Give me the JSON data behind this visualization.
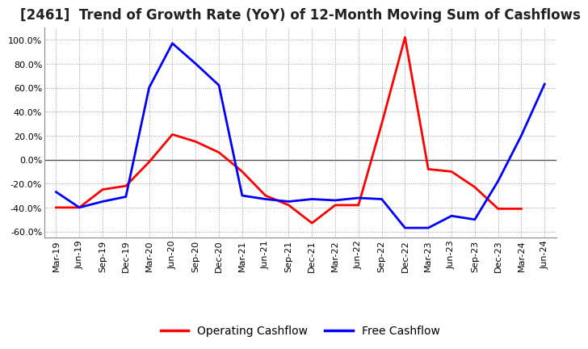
{
  "title": "[2461]  Trend of Growth Rate (YoY) of 12-Month Moving Sum of Cashflows",
  "x_labels": [
    "Mar-19",
    "Jun-19",
    "Sep-19",
    "Dec-19",
    "Mar-20",
    "Jun-20",
    "Sep-20",
    "Dec-20",
    "Mar-21",
    "Jun-21",
    "Sep-21",
    "Dec-21",
    "Mar-22",
    "Jun-22",
    "Sep-22",
    "Dec-22",
    "Mar-23",
    "Jun-23",
    "Sep-23",
    "Dec-23",
    "Mar-24",
    "Jun-24"
  ],
  "operating_cashflow": [
    -0.4,
    -0.4,
    -0.25,
    -0.22,
    -0.02,
    0.21,
    0.15,
    0.06,
    -0.1,
    -0.3,
    -0.38,
    -0.53,
    -0.38,
    -0.38,
    0.3,
    1.02,
    -0.08,
    -0.1,
    -0.23,
    -0.41,
    -0.41,
    null
  ],
  "free_cashflow": [
    -0.27,
    -0.4,
    -0.35,
    -0.31,
    0.6,
    0.97,
    0.8,
    0.62,
    -0.3,
    -0.33,
    -0.35,
    -0.33,
    -0.34,
    -0.32,
    -0.33,
    -0.57,
    -0.57,
    -0.47,
    -0.5,
    -0.18,
    0.2,
    0.63
  ],
  "operating_color": "#FF0000",
  "free_color": "#0000FF",
  "ylim": [
    -0.65,
    1.1
  ],
  "yticks": [
    -0.6,
    -0.4,
    -0.2,
    0.0,
    0.2,
    0.4,
    0.6,
    0.8,
    1.0
  ],
  "background_color": "#FFFFFF",
  "grid_color": "#999999",
  "legend_labels": [
    "Operating Cashflow",
    "Free Cashflow"
  ],
  "title_fontsize": 12,
  "tick_fontsize": 8,
  "legend_fontsize": 10,
  "linewidth": 2.0
}
